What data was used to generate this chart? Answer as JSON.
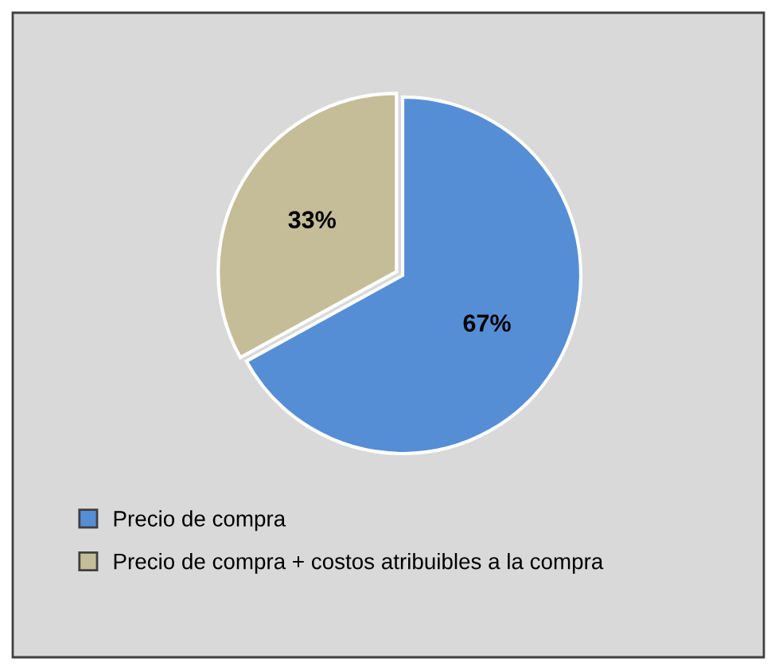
{
  "chart_data": {
    "type": "pie",
    "categories": [
      "Precio de compra",
      "Precio de compra + costos atribuibles a la compra"
    ],
    "values": [
      67,
      33
    ],
    "colors": [
      "#558ed5",
      "#c4bd97"
    ],
    "value_labels": [
      "67%",
      "33%"
    ],
    "legend": "bottom"
  }
}
